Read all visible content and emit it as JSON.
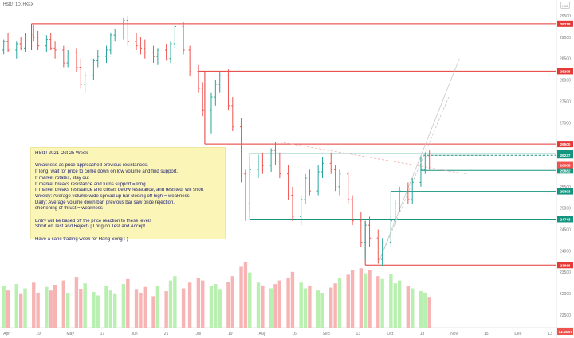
{
  "header": {
    "symbol_line": "HSI1!, 1D, HKEX",
    "currency_box": "HKD"
  },
  "note": {
    "lines": [
      "HSI1!  2021 Oct 25 Week",
      "",
      "Weakness as price approached previous resistances.",
      "If long, wait for price to come down on low volume and find support.",
      "If market rotates, stay out",
      "If market breaks resistance and turns support = long",
      "If market breaks resistance and closes below resistance, and resisted, will short",
      "Weekly: Average volume wide spread up bar closing off high = weakness",
      "Daily: Average volume down bar, previous bar saw price rejection,",
      "shortening of thrust = weakness",
      "",
      "Entry will be based off the price reaction to these levels",
      "Short on Test and Reject)   |    Long on Test and Accept",
      "",
      "Have a sane trading week for Hang Seng : )"
    ]
  },
  "colors": {
    "resistance": "#e53935",
    "support": "#15947f",
    "up_bar": "#26a69a",
    "down_bar": "#ef5350",
    "vol_up": "#b9efb0",
    "vol_down": "#f7b4b4",
    "note_bg": "#fbf5b8"
  },
  "chart_data": {
    "type": "ohlc",
    "title": "",
    "price_axis": {
      "ticks": [
        29500,
        29000,
        28500,
        28000,
        27500,
        27000,
        26500,
        26000,
        25500,
        25000,
        24500,
        24000,
        23500,
        23000,
        22500
      ],
      "ylim": [
        22200,
        29650
      ]
    },
    "x_axis": {
      "labels": [
        "Apr",
        "19",
        "May",
        "17",
        "Jun",
        "21",
        "Jul",
        "19",
        "Aug",
        "16",
        "Sep",
        "13",
        "Oct",
        "18",
        "Nov",
        "15",
        "Dec",
        "13"
      ],
      "start_date": "2021-04-05",
      "end_date": "2021-12-20"
    },
    "level_lines": [
      {
        "value": 29318,
        "label": "29318",
        "kind": "resistance",
        "x_start": "2021-04-19"
      },
      {
        "value": 28208,
        "label": "28208",
        "kind": "resistance",
        "x_start": "2021-07-06"
      },
      {
        "value": 26500,
        "label": "26500",
        "kind": "resistance",
        "x_start": "2021-07-09"
      },
      {
        "value": 26284,
        "label": "26284",
        "kind": "support",
        "x_start": "2021-07-30"
      },
      {
        "value": 26237,
        "label": "26237",
        "kind": "support",
        "x_start": "2021-10-19",
        "dashed": true
      },
      {
        "value": 25882,
        "label": "25882",
        "kind": "support",
        "x_start": "2021-10-18"
      },
      {
        "value": 25393,
        "label": "25393",
        "kind": "support",
        "x_start": "2021-10-04"
      },
      {
        "value": 24743,
        "label": "24743",
        "kind": "support",
        "x_start": "2021-07-30"
      },
      {
        "value": 23666,
        "label": "23666",
        "kind": "resistance",
        "x_start": "2021-09-22"
      }
    ],
    "current_price": {
      "value": 26008,
      "label": "26008"
    },
    "volume_tag": {
      "label": "14.682K"
    },
    "bars": [
      {
        "date": "2021-04-06",
        "o": 28700,
        "h": 28950,
        "l": 28600,
        "c": 28900
      },
      {
        "date": "2021-04-08",
        "o": 28900,
        "h": 29100,
        "l": 28650,
        "c": 28700
      },
      {
        "date": "2021-04-12",
        "o": 28700,
        "h": 28900,
        "l": 28500,
        "c": 28850
      },
      {
        "date": "2021-04-14",
        "o": 28850,
        "h": 29000,
        "l": 28700,
        "c": 28750
      },
      {
        "date": "2021-04-16",
        "o": 28750,
        "h": 29100,
        "l": 28650,
        "c": 29050
      },
      {
        "date": "2021-04-20",
        "o": 29050,
        "h": 29300,
        "l": 28900,
        "c": 29000
      },
      {
        "date": "2021-04-22",
        "o": 29000,
        "h": 29150,
        "l": 28700,
        "c": 28800
      },
      {
        "date": "2021-04-26",
        "o": 28800,
        "h": 29050,
        "l": 28650,
        "c": 28950
      },
      {
        "date": "2021-04-28",
        "o": 28950,
        "h": 29100,
        "l": 28700,
        "c": 28750
      },
      {
        "date": "2021-04-30",
        "o": 28750,
        "h": 28900,
        "l": 28500,
        "c": 28700
      },
      {
        "date": "2021-05-04",
        "o": 28700,
        "h": 28800,
        "l": 28300,
        "c": 28400
      },
      {
        "date": "2021-05-06",
        "o": 28400,
        "h": 28700,
        "l": 28300,
        "c": 28650
      },
      {
        "date": "2021-05-10",
        "o": 28650,
        "h": 28750,
        "l": 28200,
        "c": 28300
      },
      {
        "date": "2021-05-12",
        "o": 28300,
        "h": 28500,
        "l": 27800,
        "c": 27900
      },
      {
        "date": "2021-05-14",
        "o": 27900,
        "h": 28200,
        "l": 27700,
        "c": 28100
      },
      {
        "date": "2021-05-18",
        "o": 28100,
        "h": 28500,
        "l": 28000,
        "c": 28450
      },
      {
        "date": "2021-05-20",
        "o": 28450,
        "h": 28700,
        "l": 28300,
        "c": 28550
      },
      {
        "date": "2021-05-24",
        "o": 28550,
        "h": 28800,
        "l": 28400,
        "c": 28700
      },
      {
        "date": "2021-05-26",
        "o": 28700,
        "h": 29100,
        "l": 28600,
        "c": 29050
      },
      {
        "date": "2021-05-28",
        "o": 29050,
        "h": 29200,
        "l": 28900,
        "c": 29100
      },
      {
        "date": "2021-06-01",
        "o": 29100,
        "h": 29450,
        "l": 28950,
        "c": 29400
      },
      {
        "date": "2021-06-03",
        "o": 29400,
        "h": 29500,
        "l": 28800,
        "c": 28900
      },
      {
        "date": "2021-06-07",
        "o": 28900,
        "h": 29100,
        "l": 28700,
        "c": 28800
      },
      {
        "date": "2021-06-09",
        "o": 28800,
        "h": 29000,
        "l": 28600,
        "c": 28750
      },
      {
        "date": "2021-06-11",
        "o": 28750,
        "h": 28950,
        "l": 28500,
        "c": 28650
      },
      {
        "date": "2021-06-15",
        "o": 28650,
        "h": 28800,
        "l": 28400,
        "c": 28550
      },
      {
        "date": "2021-06-17",
        "o": 28550,
        "h": 28750,
        "l": 28350,
        "c": 28700
      },
      {
        "date": "2021-06-21",
        "o": 28700,
        "h": 28850,
        "l": 28450,
        "c": 28500
      },
      {
        "date": "2021-06-23",
        "o": 28500,
        "h": 28900,
        "l": 28400,
        "c": 28850
      },
      {
        "date": "2021-06-25",
        "o": 28850,
        "h": 29300,
        "l": 28750,
        "c": 29250
      },
      {
        "date": "2021-06-29",
        "o": 29250,
        "h": 29350,
        "l": 28600,
        "c": 28700
      },
      {
        "date": "2021-07-02",
        "o": 28700,
        "h": 28800,
        "l": 28100,
        "c": 28200
      },
      {
        "date": "2021-07-06",
        "o": 28200,
        "h": 28350,
        "l": 27700,
        "c": 27800
      },
      {
        "date": "2021-07-08",
        "o": 27800,
        "h": 27950,
        "l": 27150,
        "c": 27300
      },
      {
        "date": "2021-07-12",
        "o": 27300,
        "h": 27700,
        "l": 26750,
        "c": 27600
      },
      {
        "date": "2021-07-14",
        "o": 27600,
        "h": 28000,
        "l": 27400,
        "c": 27900
      },
      {
        "date": "2021-07-16",
        "o": 27900,
        "h": 28200,
        "l": 27700,
        "c": 28100
      },
      {
        "date": "2021-07-20",
        "o": 28100,
        "h": 28250,
        "l": 27300,
        "c": 27400
      },
      {
        "date": "2021-07-22",
        "o": 27400,
        "h": 27600,
        "l": 26800,
        "c": 26900
      },
      {
        "date": "2021-07-26",
        "o": 26900,
        "h": 27100,
        "l": 25600,
        "c": 25800
      },
      {
        "date": "2021-07-28",
        "o": 25800,
        "h": 25900,
        "l": 24700,
        "c": 25100
      },
      {
        "date": "2021-07-30",
        "o": 25100,
        "h": 26000,
        "l": 24900,
        "c": 25900
      },
      {
        "date": "2021-08-03",
        "o": 25900,
        "h": 26250,
        "l": 25700,
        "c": 26100
      },
      {
        "date": "2021-08-05",
        "o": 26100,
        "h": 26300,
        "l": 25800,
        "c": 26000
      },
      {
        "date": "2021-08-09",
        "o": 26000,
        "h": 26400,
        "l": 25850,
        "c": 26350
      },
      {
        "date": "2021-08-11",
        "o": 26350,
        "h": 26550,
        "l": 26000,
        "c": 26100
      },
      {
        "date": "2021-08-13",
        "o": 26100,
        "h": 26300,
        "l": 25700,
        "c": 25800
      },
      {
        "date": "2021-08-17",
        "o": 25800,
        "h": 26000,
        "l": 25200,
        "c": 25300
      },
      {
        "date": "2021-08-19",
        "o": 25300,
        "h": 25500,
        "l": 24700,
        "c": 24800
      },
      {
        "date": "2021-08-23",
        "o": 24800,
        "h": 25300,
        "l": 24600,
        "c": 25200
      },
      {
        "date": "2021-08-25",
        "o": 25200,
        "h": 25800,
        "l": 25100,
        "c": 25700
      },
      {
        "date": "2021-08-27",
        "o": 25700,
        "h": 25900,
        "l": 25300,
        "c": 25400
      },
      {
        "date": "2021-08-31",
        "o": 25400,
        "h": 26000,
        "l": 25300,
        "c": 25850
      },
      {
        "date": "2021-09-02",
        "o": 25850,
        "h": 26200,
        "l": 25700,
        "c": 26050
      },
      {
        "date": "2021-09-06",
        "o": 26050,
        "h": 26300,
        "l": 25800,
        "c": 25900
      },
      {
        "date": "2021-09-08",
        "o": 25900,
        "h": 26000,
        "l": 25400,
        "c": 25500
      },
      {
        "date": "2021-09-10",
        "o": 25500,
        "h": 25900,
        "l": 25300,
        "c": 25800
      },
      {
        "date": "2021-09-14",
        "o": 25800,
        "h": 25850,
        "l": 25100,
        "c": 25200
      },
      {
        "date": "2021-09-16",
        "o": 25200,
        "h": 25300,
        "l": 24600,
        "c": 24700
      },
      {
        "date": "2021-09-20",
        "o": 24700,
        "h": 24900,
        "l": 24100,
        "c": 24200
      },
      {
        "date": "2021-09-22",
        "o": 24200,
        "h": 24700,
        "l": 23800,
        "c": 24600
      },
      {
        "date": "2021-09-24",
        "o": 24600,
        "h": 24800,
        "l": 24100,
        "c": 24300
      },
      {
        "date": "2021-09-28",
        "o": 24300,
        "h": 24500,
        "l": 23700,
        "c": 23800
      },
      {
        "date": "2021-09-30",
        "o": 23800,
        "h": 24300,
        "l": 23650,
        "c": 24200
      },
      {
        "date": "2021-10-04",
        "o": 24200,
        "h": 24800,
        "l": 24100,
        "c": 24700
      },
      {
        "date": "2021-10-06",
        "o": 24700,
        "h": 25200,
        "l": 24600,
        "c": 25100
      },
      {
        "date": "2021-10-08",
        "o": 25100,
        "h": 25500,
        "l": 24900,
        "c": 25400
      },
      {
        "date": "2021-10-12",
        "o": 25400,
        "h": 25600,
        "l": 25100,
        "c": 25200
      },
      {
        "date": "2021-10-14",
        "o": 25200,
        "h": 25700,
        "l": 25100,
        "c": 25600
      },
      {
        "date": "2021-10-18",
        "o": 25600,
        "h": 26000,
        "l": 25500,
        "c": 25900
      },
      {
        "date": "2021-10-20",
        "o": 25900,
        "h": 26300,
        "l": 25800,
        "c": 26200
      },
      {
        "date": "2021-10-22",
        "o": 26200,
        "h": 26350,
        "l": 25900,
        "c": 26008
      }
    ],
    "volume": [
      58,
      52,
      61,
      47,
      55,
      63,
      49,
      57,
      52,
      60,
      66,
      48,
      71,
      54,
      62,
      50,
      45,
      58,
      52,
      47,
      61,
      68,
      53,
      49,
      57,
      44,
      59,
      51,
      66,
      72,
      55,
      63,
      70,
      66,
      58,
      61,
      53,
      64,
      72,
      85,
      92,
      77,
      63,
      59,
      55,
      61,
      66,
      70,
      78,
      63,
      55,
      59,
      52,
      48,
      56,
      62,
      69,
      74,
      80,
      83,
      76,
      81,
      72,
      68,
      75,
      62,
      66,
      58,
      55,
      51,
      49,
      42
    ],
    "volume_max": 100
  }
}
